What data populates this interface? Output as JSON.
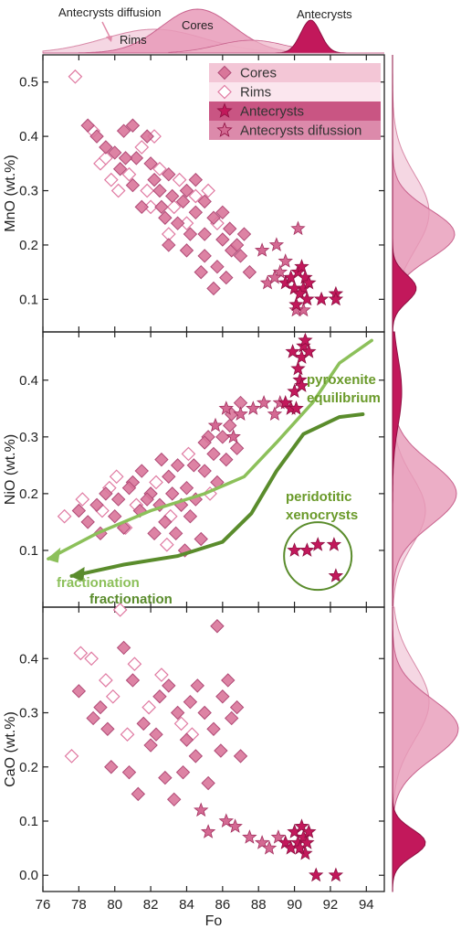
{
  "chart_data": {
    "type": "scatter",
    "x_label": "Fo",
    "x_range": [
      76,
      95
    ],
    "x_ticks": [
      76,
      78,
      80,
      82,
      84,
      86,
      88,
      90,
      92,
      94
    ],
    "colors": {
      "cores_fill": "#d9769a",
      "cores_edge": "#b04a76",
      "rims_fill": "#ffffff",
      "rims_edge": "#e07aa2",
      "antecrysts": "#c2185b",
      "antecryst_diffusion": "#d46a93",
      "green_light": "#8cc05a",
      "green_dark": "#5a8c2c",
      "density_rims": "#f3d0de",
      "density_cores": "#e79ab8",
      "density_antecrysts": "#c2185b"
    },
    "legend": {
      "placement": "top-right",
      "entries": [
        {
          "label": "Cores",
          "marker": "diamond-filled"
        },
        {
          "label": "Rims",
          "marker": "diamond-open"
        },
        {
          "label": "Antecrysts",
          "marker": "star"
        },
        {
          "label": "Antecrysts difussion",
          "marker": "star"
        }
      ]
    },
    "top_density_labels": {
      "antecryst_diffusion": "Antecrysts diffusion",
      "rims": "Rims",
      "cores": "Cores",
      "antecrysts": "Antecrysts"
    },
    "panels": [
      {
        "id": "mno",
        "ylabel": "MnO (wt.%)",
        "ylim": [
          0.04,
          0.55
        ],
        "yticks": [
          "0.1",
          "0.2",
          "0.3",
          "0.4",
          "0.5"
        ],
        "series": {
          "cores": [
            [
              78.5,
              0.42
            ],
            [
              79,
              0.4
            ],
            [
              79.5,
              0.38
            ],
            [
              80,
              0.37
            ],
            [
              80.5,
              0.41
            ],
            [
              81,
              0.42
            ],
            [
              81.2,
              0.36
            ],
            [
              81.8,
              0.4
            ],
            [
              80.3,
              0.34
            ],
            [
              82,
              0.35
            ],
            [
              82.5,
              0.3
            ],
            [
              83,
              0.33
            ],
            [
              83.2,
              0.29
            ],
            [
              82.2,
              0.32
            ],
            [
              81.5,
              0.27
            ],
            [
              84,
              0.3
            ],
            [
              84.5,
              0.26
            ],
            [
              85,
              0.28
            ],
            [
              85.5,
              0.25
            ],
            [
              83.5,
              0.24
            ],
            [
              84.2,
              0.22
            ],
            [
              85,
              0.22
            ],
            [
              86,
              0.21
            ],
            [
              86.5,
              0.19
            ],
            [
              87,
              0.18
            ],
            [
              87.5,
              0.15
            ],
            [
              86.8,
              0.2
            ],
            [
              84.8,
              0.15
            ],
            [
              86.2,
              0.14
            ],
            [
              85.5,
              0.12
            ],
            [
              85,
              0.18
            ],
            [
              83,
              0.2
            ],
            [
              82.8,
              0.25
            ],
            [
              84.5,
              0.32
            ],
            [
              83.8,
              0.28
            ],
            [
              86,
              0.26
            ],
            [
              81,
              0.31
            ],
            [
              80.6,
              0.36
            ],
            [
              82.6,
              0.27
            ],
            [
              85.7,
              0.16
            ],
            [
              87.2,
              0.22
            ],
            [
              86.4,
              0.23
            ],
            [
              84,
              0.19
            ]
          ],
          "rims": [
            [
              77.8,
              0.51
            ],
            [
              78.8,
              0.41
            ],
            [
              79.2,
              0.35
            ],
            [
              79.8,
              0.32
            ],
            [
              80.2,
              0.3
            ],
            [
              81.5,
              0.38
            ],
            [
              82.2,
              0.4
            ],
            [
              81.8,
              0.3
            ],
            [
              82.5,
              0.34
            ],
            [
              83,
              0.22
            ],
            [
              84.5,
              0.29
            ],
            [
              85.2,
              0.3
            ],
            [
              84,
              0.24
            ],
            [
              83.6,
              0.32
            ],
            [
              82,
              0.27
            ],
            [
              80.8,
              0.33
            ],
            [
              85.7,
              0.24
            ],
            [
              79.5,
              0.36
            ],
            [
              83.3,
              0.27
            ]
          ],
          "antecrysts": [
            [
              89.5,
              0.13
            ],
            [
              89.8,
              0.14
            ],
            [
              90,
              0.12
            ],
            [
              90.2,
              0.15
            ],
            [
              90.4,
              0.16
            ],
            [
              90.5,
              0.12
            ],
            [
              90.6,
              0.14
            ],
            [
              90.3,
              0.11
            ],
            [
              90.7,
              0.1
            ],
            [
              90.1,
              0.09
            ],
            [
              90.8,
              0.13
            ],
            [
              91.5,
              0.1
            ],
            [
              92.3,
              0.11
            ],
            [
              92.3,
              0.1
            ]
          ],
          "antecryst_diffusion": [
            [
              88.2,
              0.19
            ],
            [
              89,
              0.2
            ],
            [
              89.5,
              0.17
            ],
            [
              89.2,
              0.15
            ],
            [
              88.5,
              0.13
            ],
            [
              88.9,
              0.14
            ],
            [
              90.2,
              0.23
            ],
            [
              90.5,
              0.08
            ],
            [
              90.1,
              0.08
            ]
          ]
        }
      },
      {
        "id": "nio",
        "ylabel": "NiO (wt.%)",
        "ylim": [
          0.0,
          0.485
        ],
        "yticks": [
          "0.1",
          "0.2",
          "0.3",
          "0.4"
        ],
        "series": {
          "cores": [
            [
              78,
              0.17
            ],
            [
              78.5,
              0.15
            ],
            [
              79,
              0.18
            ],
            [
              79.5,
              0.2
            ],
            [
              80,
              0.16
            ],
            [
              80.5,
              0.14
            ],
            [
              81,
              0.22
            ],
            [
              81.5,
              0.24
            ],
            [
              82,
              0.2
            ],
            [
              82.5,
              0.18
            ],
            [
              83,
              0.23
            ],
            [
              83.5,
              0.25
            ],
            [
              84,
              0.21
            ],
            [
              84.5,
              0.19
            ],
            [
              85,
              0.24
            ],
            [
              85.5,
              0.27
            ],
            [
              86,
              0.3
            ],
            [
              86.5,
              0.34
            ],
            [
              87,
              0.36
            ],
            [
              85.2,
              0.3
            ],
            [
              84.2,
              0.16
            ],
            [
              83.4,
              0.13
            ],
            [
              82.8,
              0.15
            ],
            [
              81.8,
              0.19
            ],
            [
              80.8,
              0.21
            ],
            [
              86.2,
              0.26
            ],
            [
              85.7,
              0.22
            ],
            [
              84.8,
              0.12
            ],
            [
              83.9,
              0.1
            ],
            [
              82.2,
              0.13
            ],
            [
              81.4,
              0.17
            ],
            [
              86.8,
              0.28
            ],
            [
              85,
              0.29
            ],
            [
              84.4,
              0.25
            ],
            [
              83.2,
              0.2
            ],
            [
              82.6,
              0.26
            ],
            [
              80.2,
              0.19
            ],
            [
              79.2,
              0.13
            ],
            [
              86.4,
              0.32
            ],
            [
              83.7,
              0.18
            ]
          ],
          "rims": [
            [
              77.2,
              0.16
            ],
            [
              78.2,
              0.19
            ],
            [
              79.3,
              0.17
            ],
            [
              80.1,
              0.23
            ],
            [
              81.2,
              0.18
            ],
            [
              82.3,
              0.22
            ],
            [
              83.1,
              0.16
            ],
            [
              84.1,
              0.27
            ],
            [
              85.3,
              0.2
            ],
            [
              79.7,
              0.21
            ],
            [
              80.6,
              0.14
            ],
            [
              82.9,
              0.11
            ]
          ],
          "antecrysts": [
            [
              89.5,
              0.36
            ],
            [
              89.8,
              0.35
            ],
            [
              90,
              0.38
            ],
            [
              90.2,
              0.42
            ],
            [
              90.4,
              0.44
            ],
            [
              90.5,
              0.46
            ],
            [
              90.6,
              0.47
            ],
            [
              90.8,
              0.45
            ],
            [
              90.3,
              0.4
            ],
            [
              90.1,
              0.35
            ],
            [
              89.9,
              0.45
            ],
            [
              90.4,
              0.39
            ]
          ],
          "antecryst_diffusion": [
            [
              85.6,
              0.32
            ],
            [
              86.2,
              0.35
            ],
            [
              87,
              0.34
            ],
            [
              87.7,
              0.35
            ],
            [
              88.3,
              0.36
            ],
            [
              86.6,
              0.3
            ],
            [
              88.9,
              0.34
            ],
            [
              89.2,
              0.36
            ]
          ],
          "peridotitic_xenocrysts": [
            [
              90,
              0.1
            ],
            [
              90.7,
              0.1
            ],
            [
              91.3,
              0.11
            ],
            [
              92.2,
              0.11
            ],
            [
              92.3,
              0.055
            ]
          ]
        }
      },
      {
        "id": "cao",
        "ylabel": "CaO (wt.%)",
        "ylim": [
          -0.03,
          0.495
        ],
        "yticks": [
          "0.0",
          "0.1",
          "0.2",
          "0.3",
          "0.4"
        ],
        "series": {
          "cores": [
            [
              78,
              0.34
            ],
            [
              78.8,
              0.29
            ],
            [
              79.2,
              0.31
            ],
            [
              79.8,
              0.2
            ],
            [
              80.5,
              0.42
            ],
            [
              81,
              0.36
            ],
            [
              81.3,
              0.15
            ],
            [
              81.6,
              0.28
            ],
            [
              82,
              0.24
            ],
            [
              82.5,
              0.33
            ],
            [
              83,
              0.35
            ],
            [
              83.5,
              0.3
            ],
            [
              84,
              0.25
            ],
            [
              84.5,
              0.22
            ],
            [
              85,
              0.3
            ],
            [
              85.5,
              0.27
            ],
            [
              85.7,
              0.46
            ],
            [
              86,
              0.33
            ],
            [
              86.5,
              0.29
            ],
            [
              87,
              0.22
            ],
            [
              86.8,
              0.31
            ],
            [
              82.8,
              0.18
            ],
            [
              83.3,
              0.14
            ],
            [
              84.2,
              0.32
            ],
            [
              85.2,
              0.17
            ],
            [
              86.3,
              0.36
            ],
            [
              84.6,
              0.35
            ],
            [
              82.3,
              0.26
            ],
            [
              80.8,
              0.19
            ],
            [
              79.6,
              0.27
            ],
            [
              85.9,
              0.23
            ],
            [
              83.8,
              0.19
            ]
          ],
          "rims": [
            [
              77.6,
              0.22
            ],
            [
              78.1,
              0.41
            ],
            [
              78.7,
              0.4
            ],
            [
              79.5,
              0.36
            ],
            [
              80.3,
              0.49
            ],
            [
              81.1,
              0.39
            ],
            [
              81.9,
              0.31
            ],
            [
              82.6,
              0.37
            ],
            [
              83.7,
              0.28
            ],
            [
              84.3,
              0.26
            ],
            [
              80.7,
              0.26
            ],
            [
              79.9,
              0.33
            ]
          ],
          "antecrysts": [
            [
              89.5,
              0.06
            ],
            [
              89.8,
              0.05
            ],
            [
              90,
              0.08
            ],
            [
              90.2,
              0.06
            ],
            [
              90.4,
              0.09
            ],
            [
              90.5,
              0.07
            ],
            [
              90.6,
              0.04
            ],
            [
              90.8,
              0.08
            ],
            [
              90.3,
              0.05
            ],
            [
              91.2,
              0.0
            ],
            [
              92.3,
              0.0
            ],
            [
              90.7,
              0.06
            ]
          ],
          "antecryst_diffusion": [
            [
              85.2,
              0.08
            ],
            [
              86.2,
              0.1
            ],
            [
              86.7,
              0.09
            ],
            [
              87.5,
              0.07
            ],
            [
              88.2,
              0.06
            ],
            [
              88.6,
              0.05
            ],
            [
              89.1,
              0.07
            ],
            [
              84.8,
              0.12
            ]
          ]
        }
      }
    ],
    "annotations": [
      {
        "panel": "nio",
        "text_lines": [
          "pyroxenite",
          "equilibrium"
        ],
        "color": "#6a9a2a"
      },
      {
        "panel": "nio",
        "text_lines": [
          "peridotitic",
          "xenocrysts"
        ],
        "color": "#6a9a2a"
      },
      {
        "panel": "nio",
        "text_lines": [
          "fractionation"
        ],
        "color": "#8cc05a"
      },
      {
        "panel": "nio",
        "text_lines": [
          "fractionation"
        ],
        "color": "#5a8c2c"
      }
    ]
  }
}
